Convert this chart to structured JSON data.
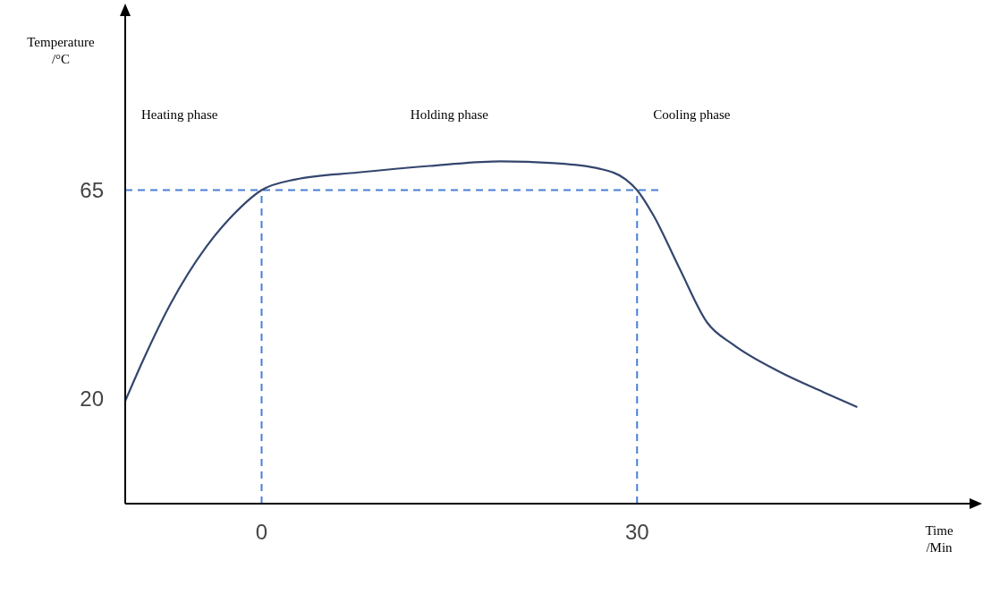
{
  "chart_data": {
    "type": "line",
    "xlabel": "Time\n/Min",
    "ylabel": "Temperature\n/°C",
    "x": [
      -10.9,
      -9.4,
      -7.3,
      -4.4,
      -2.3,
      0,
      2.7,
      7.7,
      13.4,
      19.1,
      23.4,
      27,
      29.1,
      30,
      31.3,
      33.4,
      35.6,
      37.7,
      41.3,
      44.9,
      47.6
    ],
    "series": [
      {
        "color": "#34466e",
        "values": [
          19.6,
          28.8,
          40.4,
          52.9,
          59.6,
          65,
          67.3,
          68.8,
          70.2,
          71.2,
          70.8,
          69.6,
          67.3,
          65,
          59.6,
          48.1,
          36.5,
          31.7,
          26,
          21.5,
          18.3
        ]
      }
    ],
    "xlim": [
      -10.9,
      57
    ],
    "ylim": [
      -2.5,
      104
    ],
    "xticks": [
      0,
      30
    ],
    "yticks": [
      20,
      65
    ],
    "ref_lines": [
      {
        "axis": "y",
        "value": 65,
        "color": "#4a7fd6",
        "line_style": "dashed"
      },
      {
        "axis": "x",
        "value": 0,
        "color": "#4a7fd6",
        "line_style": "dashed"
      },
      {
        "axis": "x",
        "value": 30,
        "color": "#4a7fd6",
        "line_style": "dashed"
      }
    ],
    "annotations": [
      "Heating phase",
      "Holding phase",
      "Cooling phase"
    ],
    "grid": false,
    "marker": "none",
    "line_style": "solid"
  }
}
